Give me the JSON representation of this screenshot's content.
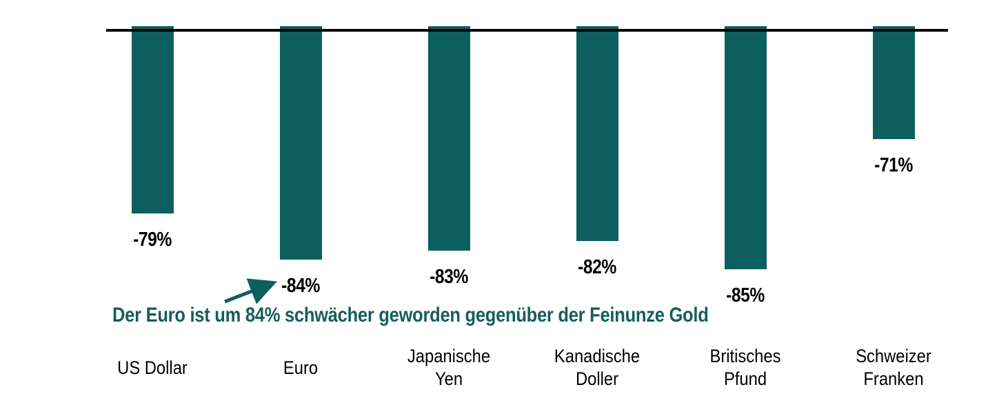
{
  "page": {
    "background": "#ffffff"
  },
  "chart_data": {
    "type": "bar",
    "title": "",
    "xlabel": "",
    "ylabel": "",
    "categories": [
      "US Dollar",
      "Euro",
      "Japanische Yen",
      "Kanadische Doller",
      "Britisches Pfund",
      "Schweizer Franken"
    ],
    "category_lines": [
      [
        "US Dollar"
      ],
      [
        "Euro"
      ],
      [
        "Japanische",
        "Yen"
      ],
      [
        "Kanadische",
        "Doller"
      ],
      [
        "Britisches",
        "Pfund"
      ],
      [
        "Schweizer",
        "Franken"
      ]
    ],
    "values": [
      -79,
      -84,
      -83,
      -82,
      -85,
      -71
    ],
    "bar_labels": [
      "-79%",
      "-84%",
      "-83%",
      "-82%",
      "-85%",
      "-71%"
    ],
    "ylim": [
      -88.5,
      -59.3
    ],
    "grid": false,
    "legend": "none",
    "baseline": "top axis line, bars extend downward (negative values)",
    "annotation": {
      "text": "Der Euro ist um 84% schwächer geworden gegenüber der Feinunze Gold",
      "arrow_points_to": "Euro -84% label"
    },
    "colors": {
      "bar": "#0d5f5f",
      "annotation": "#155e5a",
      "axis": "#000000",
      "value_label": "#000000",
      "category_label": "#000000",
      "background": "#ffffff"
    }
  }
}
